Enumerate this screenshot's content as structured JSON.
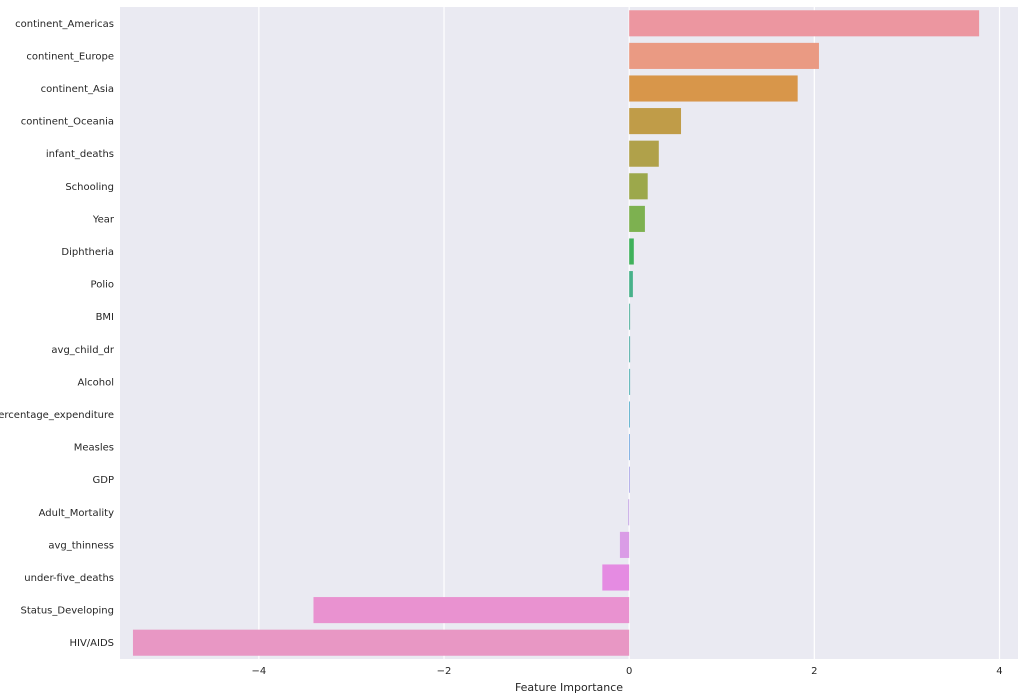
{
  "chart_data": {
    "type": "bar",
    "orientation": "horizontal",
    "title": "",
    "xlabel": "Feature Importance",
    "ylabel": "",
    "xlim": [
      -5.5,
      4.2
    ],
    "xticks": [
      -4,
      -2,
      0,
      2,
      4
    ],
    "xtick_labels": [
      "−4",
      "−2",
      "0",
      "2",
      "4"
    ],
    "grid": true,
    "categories": [
      "continent_Americas",
      "continent_Europe",
      "continent_Asia",
      "continent_Oceania",
      "infant_deaths",
      "Schooling",
      "Year",
      "Diphtheria",
      "Polio",
      "BMI",
      "avg_child_dr",
      "Alcohol",
      "percentage_expenditure",
      "Measles",
      "GDP",
      "Adult_Mortality",
      "avg_thinness",
      "under-five_deaths",
      "Status_Developing",
      "HIV/AIDS"
    ],
    "values": [
      3.78,
      2.05,
      1.82,
      0.56,
      0.32,
      0.2,
      0.17,
      0.05,
      0.04,
      0.01,
      0.01,
      0.01,
      0.0,
      0.0,
      0.0,
      -0.01,
      -0.1,
      -0.29,
      -3.41,
      -5.36
    ],
    "colors": [
      "#ec96a0",
      "#ea9a83",
      "#d8964a",
      "#c09c48",
      "#b0a14a",
      "#9ca84b",
      "#7db150",
      "#3fb15b",
      "#47b18a",
      "#4aae99",
      "#4caba3",
      "#4caeb0",
      "#4aa8c7",
      "#6aa3df",
      "#a6a1e6",
      "#c5a1e6",
      "#da9ce6",
      "#e58be2",
      "#e992d0",
      "#e897c4"
    ]
  }
}
